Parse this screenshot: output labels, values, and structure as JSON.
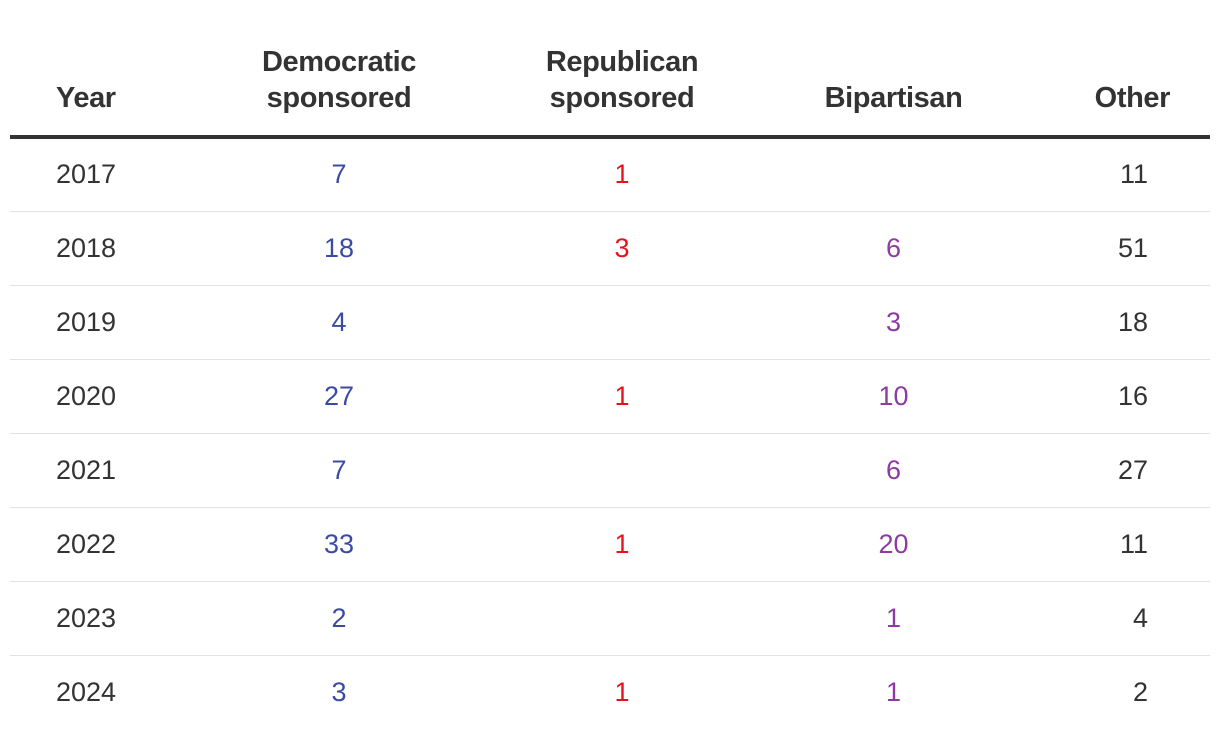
{
  "chart_data": {
    "type": "table",
    "columns": [
      {
        "key": "year",
        "label_lines": [
          "Year"
        ]
      },
      {
        "key": "democratic",
        "label_lines": [
          "Democratic",
          "sponsored"
        ]
      },
      {
        "key": "republican",
        "label_lines": [
          "Republican",
          "sponsored"
        ]
      },
      {
        "key": "bipartisan",
        "label_lines": [
          "Bipartisan"
        ]
      },
      {
        "key": "other",
        "label_lines": [
          "Other"
        ]
      }
    ],
    "rows": [
      {
        "year": "2017",
        "democratic": "7",
        "republican": "1",
        "bipartisan": "",
        "other": "11"
      },
      {
        "year": "2018",
        "democratic": "18",
        "republican": "3",
        "bipartisan": "6",
        "other": "51"
      },
      {
        "year": "2019",
        "democratic": "4",
        "republican": "",
        "bipartisan": "3",
        "other": "18"
      },
      {
        "year": "2020",
        "democratic": "27",
        "republican": "1",
        "bipartisan": "10",
        "other": "16"
      },
      {
        "year": "2021",
        "democratic": "7",
        "republican": "",
        "bipartisan": "6",
        "other": "27"
      },
      {
        "year": "2022",
        "democratic": "33",
        "republican": "1",
        "bipartisan": "20",
        "other": "11"
      },
      {
        "year": "2023",
        "democratic": "2",
        "republican": "",
        "bipartisan": "1",
        "other": "4"
      },
      {
        "year": "2024",
        "democratic": "3",
        "republican": "1",
        "bipartisan": "1",
        "other": "2"
      }
    ]
  },
  "colors": {
    "text": "#333333",
    "democratic": "#3b4ba3",
    "republican": "#e8121c",
    "bipartisan": "#8e3aa3",
    "rule": "#333333",
    "row_divider": "#e3e3e3"
  }
}
